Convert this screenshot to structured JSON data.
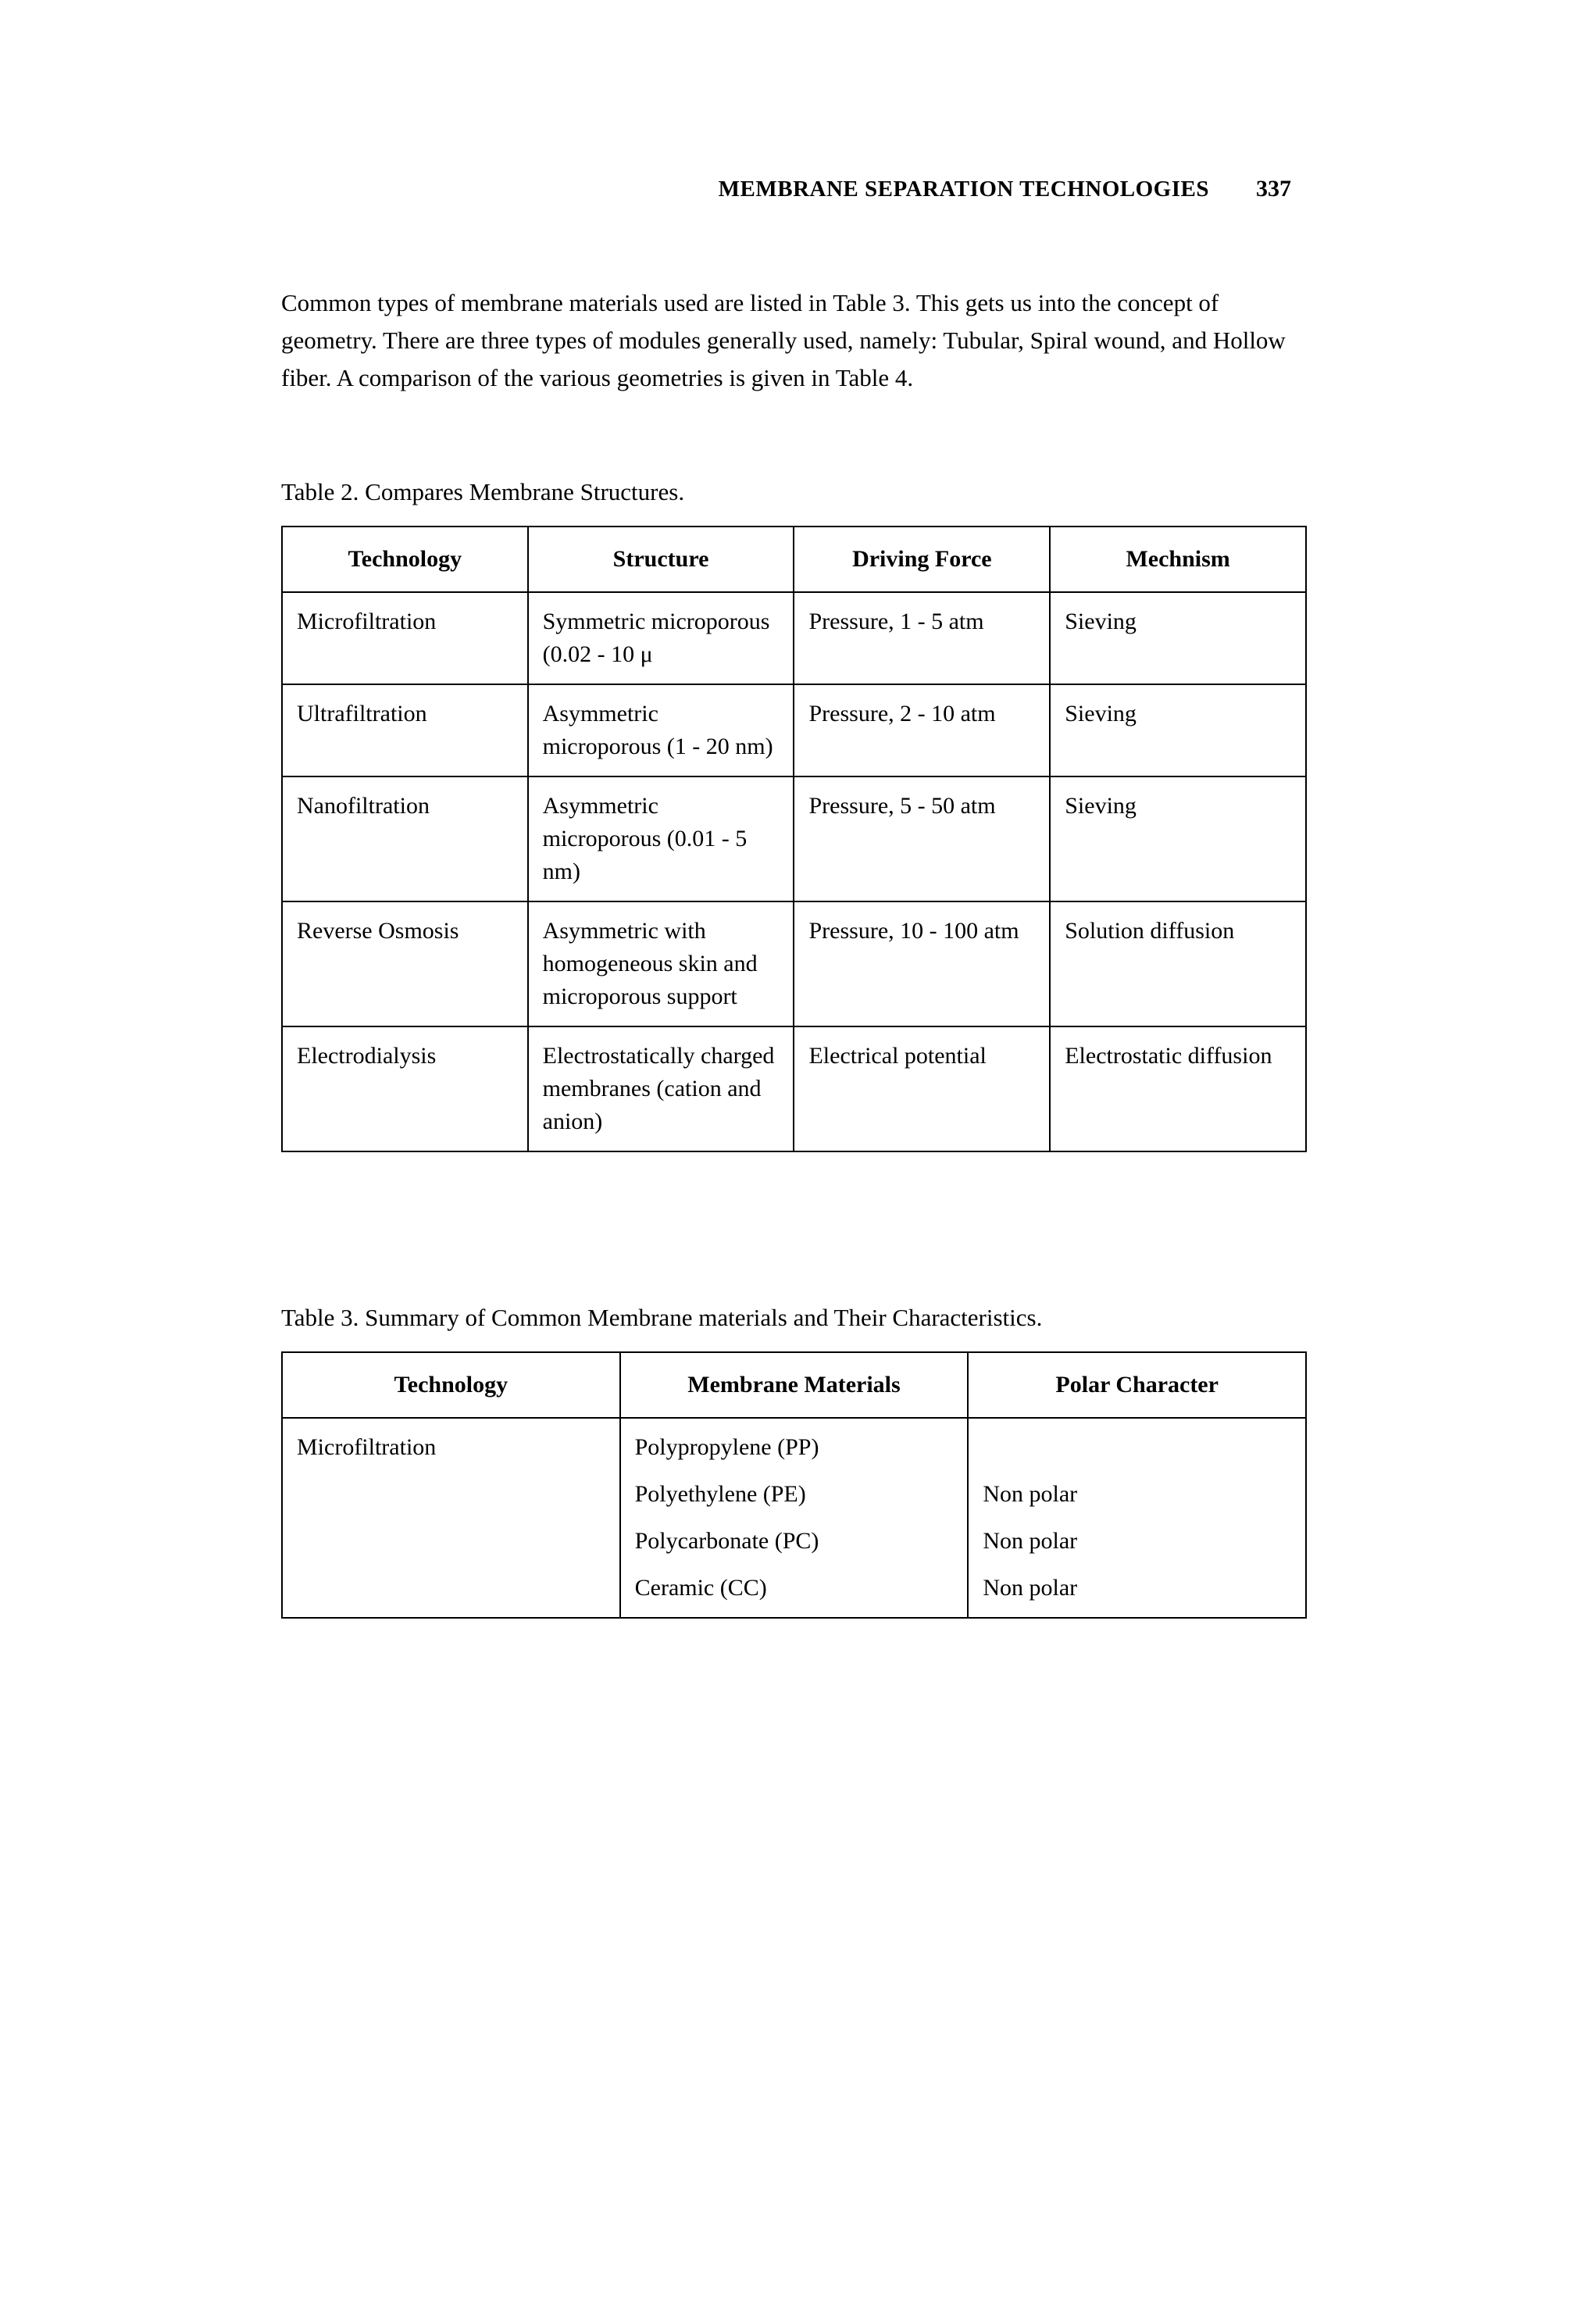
{
  "header": {
    "title": "MEMBRANE SEPARATION TECHNOLOGIES",
    "page_number": "337"
  },
  "intro_paragraph": "Common types of membrane materials used are listed in Table 3. This gets us into the concept of geometry. There are three types of modules generally used, namely: Tubular, Spiral wound, and Hollow fiber. A comparison of the various geometries is given in Table 4.",
  "table2": {
    "caption": "Table 2. Compares Membrane Structures.",
    "columns": [
      "Technology",
      "Structure",
      "Driving Force",
      "Mechnism"
    ],
    "rows": [
      [
        "Microfiltration",
        "Symmetric microporous (0.02 - 10 μ",
        "Pressure, 1 - 5 atm",
        "Sieving"
      ],
      [
        "Ultrafiltration",
        "Asymmetric microporous (1 - 20 nm)",
        "Pressure, 2 - 10 atm",
        "Sieving"
      ],
      [
        "Nanofiltration",
        "Asymmetric microporous (0.01 - 5 nm)",
        "Pressure, 5 - 50 atm",
        "Sieving"
      ],
      [
        "Reverse Osmosis",
        "Asymmetric with homogeneous skin and microporous support",
        "Pressure, 10 - 100 atm",
        "Solution diffusion"
      ],
      [
        "Electrodialysis",
        "Electrostatically charged membranes (cation and anion)",
        "Electrical potential",
        "Electrostatic diffusion"
      ]
    ]
  },
  "table3": {
    "caption": "Table 3. Summary of Common Membrane materials and Their Characteristics.",
    "columns": [
      "Technology",
      "Membrane Materials",
      "Polar Character"
    ],
    "rows": [
      {
        "technology": "Microfiltration",
        "materials": [
          "Polypropylene (PP)",
          "Polyethylene (PE)",
          "Polycarbonate (PC)",
          "Ceramic (CC)"
        ],
        "polar": [
          "",
          "Non polar",
          "Non polar",
          "Non polar"
        ]
      }
    ]
  },
  "style": {
    "background_color": "#ffffff",
    "text_color": "#000000",
    "border_color": "#000000",
    "body_fontsize": 30,
    "header_fontsize": 29,
    "font_family": "Times New Roman"
  }
}
